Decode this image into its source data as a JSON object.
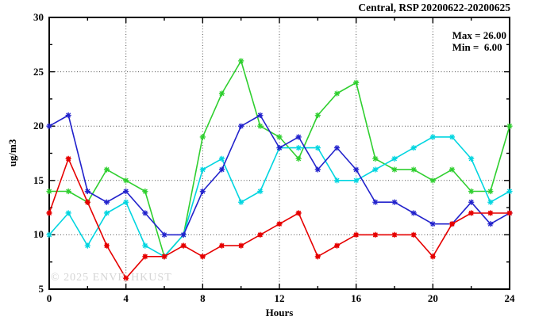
{
  "title": "Central, RSP 20200622-20200625",
  "legend": {
    "max_label": "Max = 26.00",
    "min_label": "Min =  6.00"
  },
  "watermark": "© 2025 ENVF, HKUST",
  "axes": {
    "xlabel": "Hours",
    "ylabel": "ug/m3",
    "xticks": [
      0,
      4,
      8,
      12,
      16,
      20,
      24
    ],
    "minor_xticks": [
      2,
      6,
      10,
      14,
      18,
      22
    ],
    "yticks": [
      5,
      10,
      15,
      20,
      25,
      30
    ],
    "minor_yticks": [
      7.5,
      12.5,
      17.5,
      22.5,
      27.5
    ],
    "grid_xticks": [
      4,
      8,
      12,
      16,
      20
    ],
    "grid_yticks": [
      10,
      15,
      20,
      25
    ]
  },
  "chart_data": {
    "type": "line",
    "title": "Central, RSP 20200622-20200625",
    "xlabel": "Hours",
    "ylabel": "ug/m3",
    "xlim": [
      0,
      24
    ],
    "ylim": [
      5,
      30
    ],
    "grid": true,
    "legend_position": "top-right",
    "max_value": 26.0,
    "min_value": 6.0,
    "x": [
      0,
      1,
      2,
      3,
      4,
      5,
      6,
      7,
      8,
      9,
      10,
      11,
      12,
      13,
      14,
      15,
      16,
      17,
      18,
      19,
      20,
      21,
      22,
      23,
      24
    ],
    "series": [
      {
        "name": "series-green",
        "color": "#2fcf2f",
        "marker": "asterisk",
        "values": [
          14,
          14,
          13,
          16,
          15,
          14,
          8,
          10,
          19,
          23,
          26,
          20,
          19,
          17,
          21,
          23,
          24,
          17,
          16,
          16,
          15,
          16,
          14,
          14,
          20
        ]
      },
      {
        "name": "series-cyan",
        "color": "#00d5e0",
        "marker": "asterisk",
        "values": [
          10,
          12,
          9,
          12,
          13,
          9,
          8,
          10,
          16,
          17,
          13,
          14,
          18,
          18,
          18,
          15,
          15,
          16,
          17,
          18,
          19,
          19,
          17,
          13,
          14
        ]
      },
      {
        "name": "series-blue",
        "color": "#2222cc",
        "marker": "asterisk",
        "values": [
          20,
          21,
          14,
          13,
          14,
          12,
          10,
          10,
          14,
          16,
          20,
          21,
          18,
          19,
          16,
          18,
          16,
          13,
          13,
          12,
          11,
          11,
          13,
          11,
          12
        ]
      },
      {
        "name": "series-red",
        "color": "#e60000",
        "marker": "square-x",
        "values": [
          12,
          17,
          13,
          9,
          6,
          8,
          8,
          9,
          8,
          9,
          9,
          10,
          11,
          12,
          8,
          9,
          10,
          10,
          10,
          10,
          8,
          11,
          12,
          12,
          12
        ]
      }
    ]
  },
  "plot_colors": {
    "border": "#000000",
    "grid": "#555555",
    "background": "#ffffff"
  }
}
